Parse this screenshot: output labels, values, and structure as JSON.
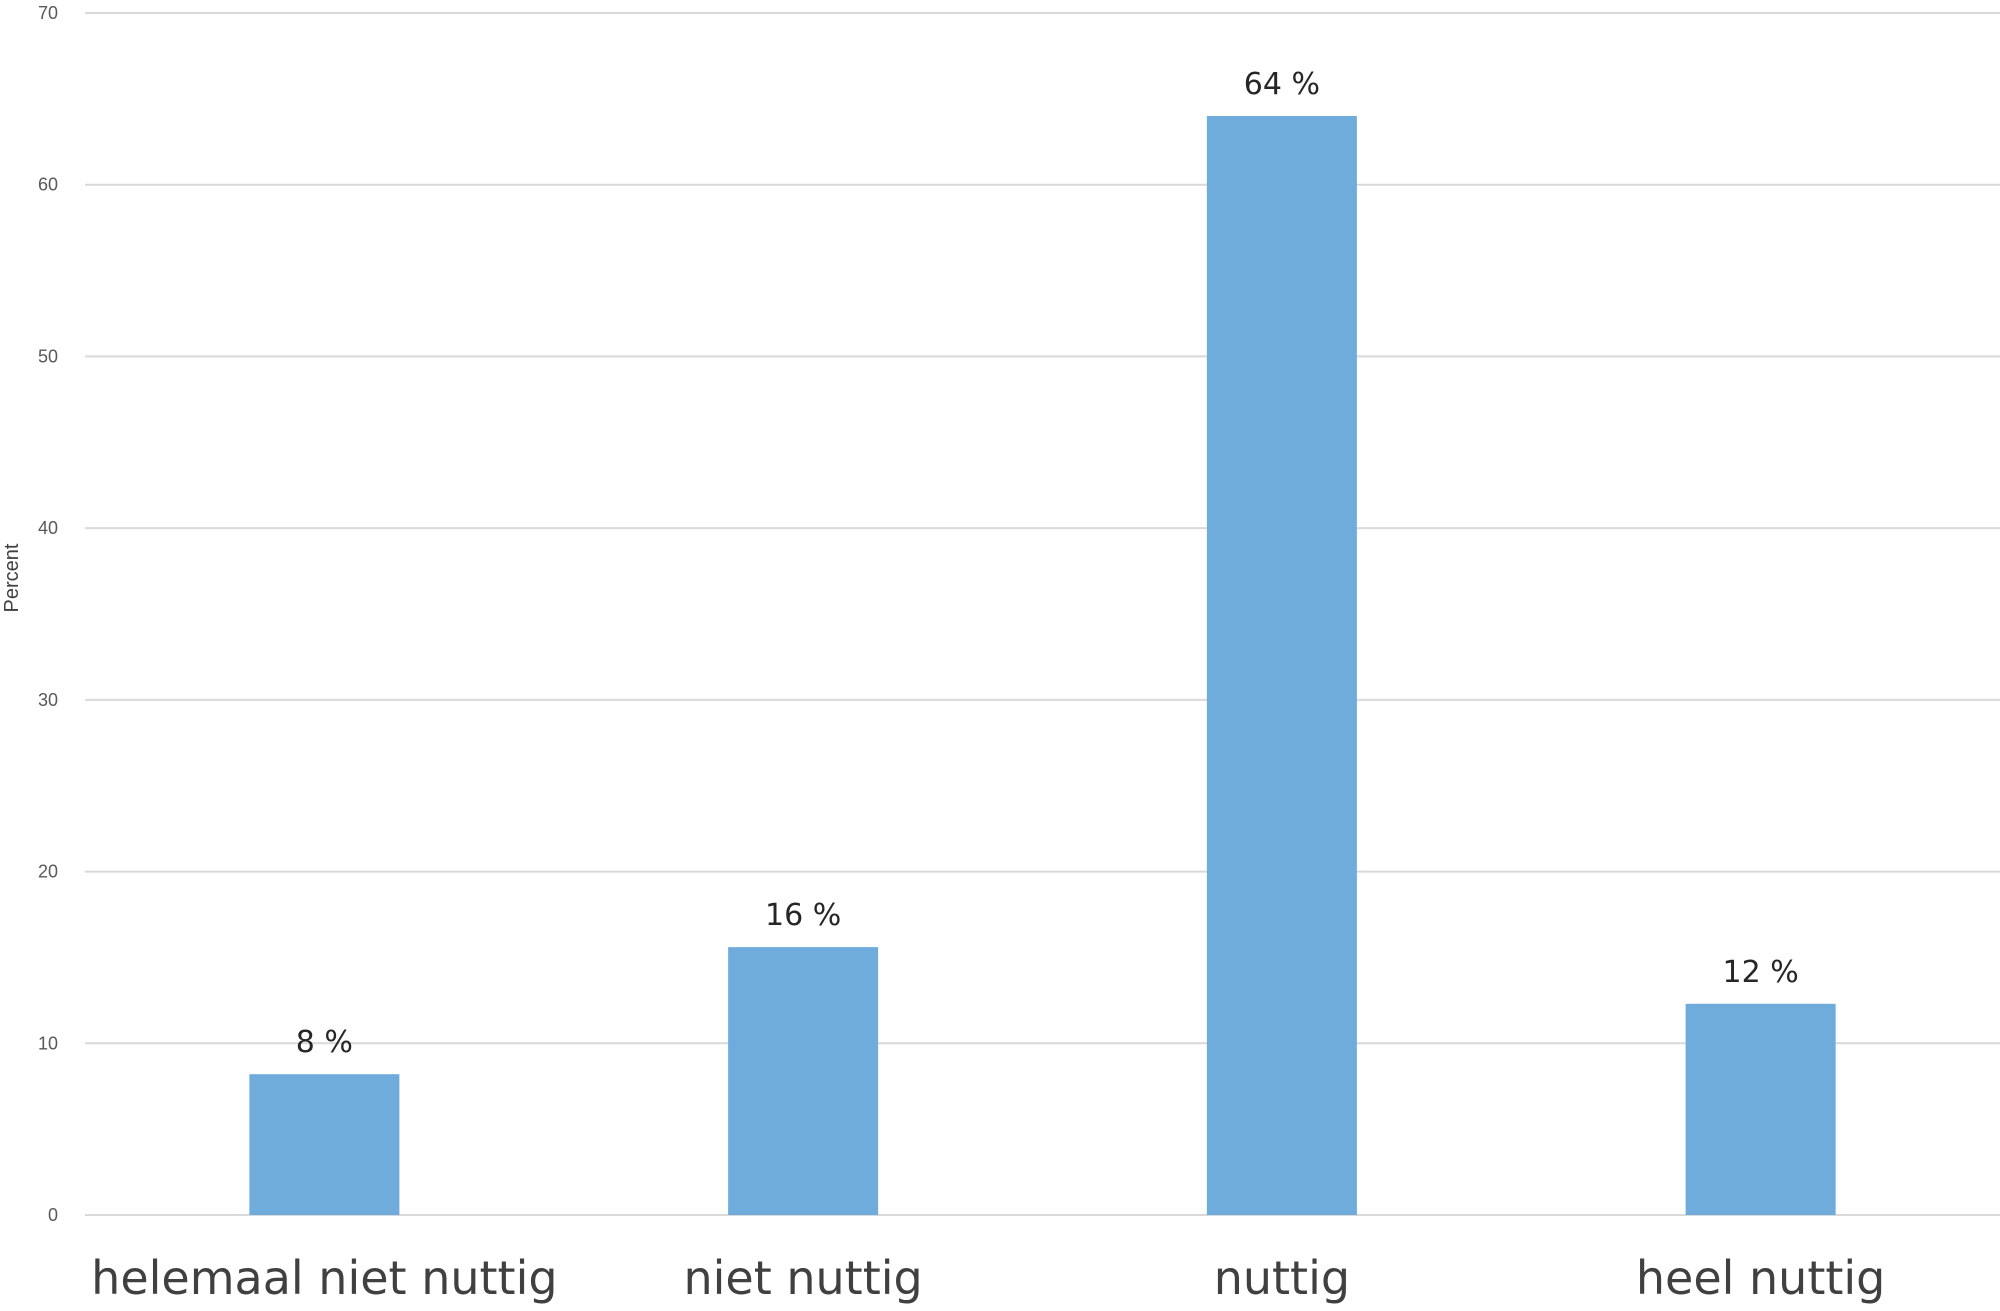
{
  "chart_data": {
    "type": "bar",
    "categories": [
      "helemaal niet nuttig",
      "niet nuttig",
      "nuttig",
      "heel nuttig"
    ],
    "values": [
      8.2,
      15.6,
      64,
      12.3
    ],
    "data_labels": [
      "8 %",
      "16 %",
      "64 %",
      "12 %"
    ],
    "title": "",
    "xlabel": "",
    "ylabel": "Percent",
    "ylim": [
      0,
      70
    ],
    "yticks": [
      0,
      10,
      20,
      30,
      40,
      50,
      60,
      70
    ],
    "grid": true,
    "legend": "none",
    "bar_color": "#6fabdb",
    "grid_color": "#d9d9d9"
  }
}
